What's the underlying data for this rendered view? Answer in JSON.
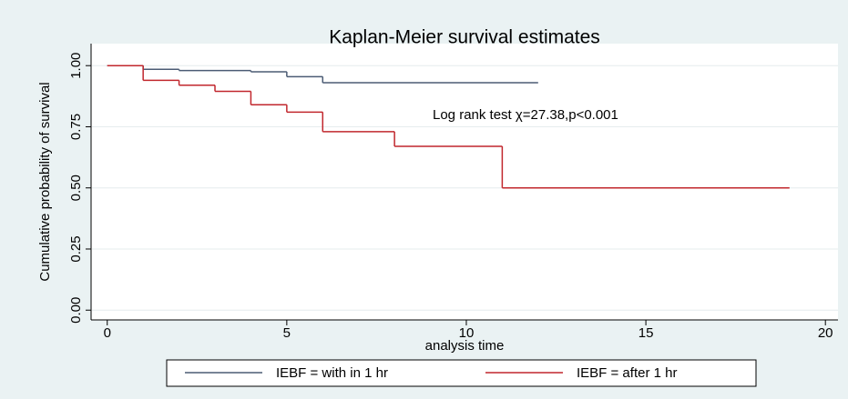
{
  "chart_data": {
    "type": "line",
    "step": true,
    "title": "Kaplan-Meier survival estimates",
    "x_label": "analysis time",
    "y_label": "Cumulative probability of survival",
    "annotation": "Log rank test χ=27.38,p<0.001",
    "xlim": [
      -0.45,
      20.35
    ],
    "ylim": [
      -0.04,
      1.09
    ],
    "xticks": [
      0,
      5,
      10,
      15,
      20
    ],
    "yticks": [
      {
        "value": 0,
        "label": "0.00"
      },
      {
        "value": 0.25,
        "label": "0.25"
      },
      {
        "value": 0.5,
        "label": "0.50"
      },
      {
        "value": 0.75,
        "label": "0.75"
      },
      {
        "value": 1,
        "label": "1.00"
      }
    ],
    "grid": true,
    "series": [
      {
        "name": "IEBF = with in 1 hr",
        "color": "#4b5b74",
        "x": [
          0,
          1,
          2,
          4,
          5,
          6,
          12
        ],
        "values": [
          1,
          0.985,
          0.98,
          0.975,
          0.955,
          0.93,
          0.93
        ]
      },
      {
        "name": "IEBF = after 1 hr",
        "color": "#c1272d",
        "x": [
          0,
          1,
          2,
          3,
          4,
          5,
          6,
          8,
          11,
          19
        ],
        "values": [
          1,
          0.94,
          0.92,
          0.895,
          0.84,
          0.81,
          0.73,
          0.67,
          0.5,
          0.5
        ]
      }
    ]
  }
}
